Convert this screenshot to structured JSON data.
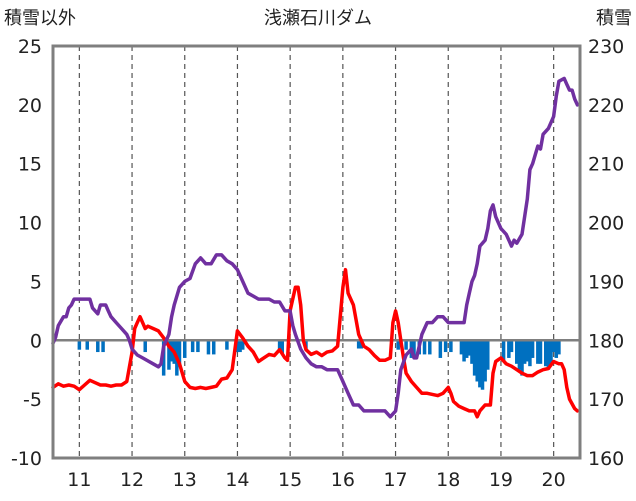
{
  "chart_data": {
    "type": "line",
    "title": "浅瀬石川ダム",
    "left_axis_label": "積雪以外",
    "right_axis_label": "積雪",
    "x_range": [
      10.5,
      20.5
    ],
    "x_ticks": [
      11,
      12,
      13,
      14,
      15,
      16,
      17,
      18,
      19,
      20
    ],
    "left_ylim": [
      -10,
      25
    ],
    "left_ticks": [
      25,
      20,
      15,
      10,
      5,
      0,
      -5,
      -10
    ],
    "right_ylim": [
      160,
      230
    ],
    "right_ticks": [
      230,
      220,
      210,
      200,
      190,
      180,
      170,
      160
    ],
    "grid": "dashed vertical at each day",
    "colors": {
      "series_red": "#ff0000",
      "series_purple": "#7030a0",
      "bars": "#0070c0",
      "zero_line": "#7f7f7f",
      "frame": "#7f7f7f"
    },
    "series": [
      {
        "axis": "left",
        "points": [
          [
            10.5,
            -4.0
          ],
          [
            10.6,
            -3.7
          ],
          [
            10.7,
            -3.9
          ],
          [
            10.8,
            -3.8
          ],
          [
            10.9,
            -3.9
          ],
          [
            11.0,
            -4.2
          ],
          [
            11.1,
            -3.8
          ],
          [
            11.2,
            -3.4
          ],
          [
            11.3,
            -3.6
          ],
          [
            11.4,
            -3.8
          ],
          [
            11.5,
            -3.8
          ],
          [
            11.6,
            -3.9
          ],
          [
            11.7,
            -3.8
          ],
          [
            11.8,
            -3.8
          ],
          [
            11.9,
            -3.5
          ],
          [
            12.0,
            -1.0
          ],
          [
            12.05,
            1.0
          ],
          [
            12.1,
            1.5
          ],
          [
            12.15,
            2.0
          ],
          [
            12.2,
            1.5
          ],
          [
            12.25,
            1.0
          ],
          [
            12.3,
            1.2
          ],
          [
            12.4,
            1.0
          ],
          [
            12.5,
            0.8
          ],
          [
            12.6,
            0.2
          ],
          [
            12.7,
            -0.5
          ],
          [
            12.8,
            -1.0
          ],
          [
            12.9,
            -2.0
          ],
          [
            13.0,
            -3.5
          ],
          [
            13.1,
            -4.0
          ],
          [
            13.2,
            -4.1
          ],
          [
            13.3,
            -4.0
          ],
          [
            13.4,
            -4.1
          ],
          [
            13.5,
            -4.0
          ],
          [
            13.6,
            -3.9
          ],
          [
            13.7,
            -3.3
          ],
          [
            13.8,
            -3.2
          ],
          [
            13.9,
            -2.5
          ],
          [
            14.0,
            0.8
          ],
          [
            14.1,
            0.2
          ],
          [
            14.2,
            -0.5
          ],
          [
            14.3,
            -1.0
          ],
          [
            14.4,
            -1.8
          ],
          [
            14.5,
            -1.5
          ],
          [
            14.6,
            -1.2
          ],
          [
            14.7,
            -1.3
          ],
          [
            14.8,
            -0.8
          ],
          [
            14.9,
            -1.5
          ],
          [
            14.95,
            -1.7
          ],
          [
            15.0,
            2.5
          ],
          [
            15.1,
            4.5
          ],
          [
            15.15,
            4.5
          ],
          [
            15.2,
            3.0
          ],
          [
            15.25,
            0.0
          ],
          [
            15.3,
            -0.8
          ],
          [
            15.4,
            -1.2
          ],
          [
            15.5,
            -1.0
          ],
          [
            15.6,
            -1.3
          ],
          [
            15.7,
            -1.0
          ],
          [
            15.8,
            -0.9
          ],
          [
            15.9,
            -0.5
          ],
          [
            16.0,
            4.5
          ],
          [
            16.05,
            6.0
          ],
          [
            16.1,
            4.0
          ],
          [
            16.2,
            3.0
          ],
          [
            16.3,
            0.5
          ],
          [
            16.4,
            -0.5
          ],
          [
            16.5,
            -0.8
          ],
          [
            16.6,
            -1.3
          ],
          [
            16.7,
            -1.7
          ],
          [
            16.8,
            -1.7
          ],
          [
            16.9,
            -1.5
          ],
          [
            16.95,
            1.5
          ],
          [
            17.0,
            2.5
          ],
          [
            17.05,
            1.5
          ],
          [
            17.1,
            0.0
          ],
          [
            17.15,
            -1.5
          ],
          [
            17.2,
            -2.8
          ],
          [
            17.3,
            -3.5
          ],
          [
            17.4,
            -4.0
          ],
          [
            17.5,
            -4.5
          ],
          [
            17.6,
            -4.5
          ],
          [
            17.7,
            -4.6
          ],
          [
            17.8,
            -4.7
          ],
          [
            17.9,
            -4.5
          ],
          [
            18.0,
            -4.0
          ],
          [
            18.05,
            -4.5
          ],
          [
            18.1,
            -5.2
          ],
          [
            18.2,
            -5.6
          ],
          [
            18.3,
            -5.8
          ],
          [
            18.4,
            -6.0
          ],
          [
            18.5,
            -6.0
          ],
          [
            18.55,
            -6.5
          ],
          [
            18.6,
            -6.0
          ],
          [
            18.7,
            -5.5
          ],
          [
            18.8,
            -5.5
          ],
          [
            18.85,
            -2.8
          ],
          [
            18.9,
            -1.8
          ],
          [
            19.0,
            -1.5
          ],
          [
            19.1,
            -2.0
          ],
          [
            19.2,
            -2.2
          ],
          [
            19.3,
            -2.5
          ],
          [
            19.4,
            -2.8
          ],
          [
            19.5,
            -3.0
          ],
          [
            19.6,
            -3.0
          ],
          [
            19.7,
            -2.7
          ],
          [
            19.8,
            -2.5
          ],
          [
            19.9,
            -2.4
          ],
          [
            20.0,
            -1.8
          ],
          [
            20.1,
            -2.0
          ],
          [
            20.15,
            -2.0
          ],
          [
            20.2,
            -2.5
          ],
          [
            20.25,
            -4.0
          ],
          [
            20.3,
            -5.0
          ],
          [
            20.4,
            -5.8
          ],
          [
            20.45,
            -6.0
          ]
        ]
      },
      {
        "axis": "right",
        "points": [
          [
            10.5,
            179.5
          ],
          [
            10.55,
            180.5
          ],
          [
            10.6,
            182.5
          ],
          [
            10.7,
            184.0
          ],
          [
            10.75,
            184.0
          ],
          [
            10.8,
            185.5
          ],
          [
            10.85,
            186.0
          ],
          [
            10.9,
            187.0
          ],
          [
            11.0,
            187.0
          ],
          [
            11.1,
            187.0
          ],
          [
            11.2,
            187.0
          ],
          [
            11.25,
            185.5
          ],
          [
            11.3,
            185.0
          ],
          [
            11.35,
            184.5
          ],
          [
            11.4,
            186.0
          ],
          [
            11.5,
            186.0
          ],
          [
            11.55,
            185.0
          ],
          [
            11.6,
            184.0
          ],
          [
            11.7,
            183.0
          ],
          [
            11.8,
            182.0
          ],
          [
            11.9,
            181.0
          ],
          [
            11.95,
            180.0
          ],
          [
            12.0,
            178.5
          ],
          [
            12.1,
            177.5
          ],
          [
            12.2,
            177.0
          ],
          [
            12.3,
            176.5
          ],
          [
            12.4,
            176.0
          ],
          [
            12.5,
            175.5
          ],
          [
            12.55,
            176.0
          ],
          [
            12.6,
            179.0
          ],
          [
            12.7,
            181.0
          ],
          [
            12.75,
            184.0
          ],
          [
            12.8,
            186.0
          ],
          [
            12.9,
            189.0
          ],
          [
            13.0,
            190.0
          ],
          [
            13.1,
            190.5
          ],
          [
            13.2,
            193.0
          ],
          [
            13.3,
            194.0
          ],
          [
            13.4,
            193.0
          ],
          [
            13.5,
            193.0
          ],
          [
            13.6,
            194.5
          ],
          [
            13.7,
            194.5
          ],
          [
            13.8,
            193.5
          ],
          [
            13.9,
            193.0
          ],
          [
            14.0,
            192.0
          ],
          [
            14.1,
            190.0
          ],
          [
            14.2,
            188.0
          ],
          [
            14.3,
            187.5
          ],
          [
            14.4,
            187.0
          ],
          [
            14.5,
            187.0
          ],
          [
            14.6,
            187.0
          ],
          [
            14.7,
            186.5
          ],
          [
            14.8,
            186.5
          ],
          [
            14.9,
            185.0
          ],
          [
            15.0,
            185.0
          ],
          [
            15.05,
            182.5
          ],
          [
            15.1,
            181.0
          ],
          [
            15.2,
            178.5
          ],
          [
            15.3,
            177.0
          ],
          [
            15.4,
            176.0
          ],
          [
            15.5,
            175.5
          ],
          [
            15.6,
            175.5
          ],
          [
            15.7,
            175.0
          ],
          [
            15.8,
            175.0
          ],
          [
            15.9,
            175.0
          ],
          [
            16.0,
            173.0
          ],
          [
            16.1,
            171.0
          ],
          [
            16.2,
            169.0
          ],
          [
            16.3,
            169.0
          ],
          [
            16.4,
            168.0
          ],
          [
            16.5,
            168.0
          ],
          [
            16.6,
            168.0
          ],
          [
            16.7,
            168.0
          ],
          [
            16.8,
            168.0
          ],
          [
            16.9,
            167.0
          ],
          [
            17.0,
            168.0
          ],
          [
            17.05,
            171.0
          ],
          [
            17.1,
            175.0
          ],
          [
            17.2,
            177.5
          ],
          [
            17.3,
            178.5
          ],
          [
            17.35,
            177.0
          ],
          [
            17.4,
            177.0
          ],
          [
            17.5,
            181.0
          ],
          [
            17.6,
            183.0
          ],
          [
            17.7,
            183.0
          ],
          [
            17.8,
            184.0
          ],
          [
            17.9,
            184.0
          ],
          [
            18.0,
            183.0
          ],
          [
            18.1,
            183.0
          ],
          [
            18.2,
            183.0
          ],
          [
            18.3,
            183.0
          ],
          [
            18.35,
            186.0
          ],
          [
            18.4,
            188.0
          ],
          [
            18.45,
            190.0
          ],
          [
            18.5,
            191.0
          ],
          [
            18.55,
            193.0
          ],
          [
            18.6,
            196.0
          ],
          [
            18.7,
            197.0
          ],
          [
            18.75,
            199.0
          ],
          [
            18.8,
            202.0
          ],
          [
            18.85,
            203.0
          ],
          [
            18.9,
            201.0
          ],
          [
            19.0,
            199.0
          ],
          [
            19.1,
            198.0
          ],
          [
            19.2,
            196.0
          ],
          [
            19.25,
            197.0
          ],
          [
            19.3,
            196.5
          ],
          [
            19.4,
            198.0
          ],
          [
            19.5,
            204.0
          ],
          [
            19.55,
            209.0
          ],
          [
            19.6,
            210.0
          ],
          [
            19.7,
            213.0
          ],
          [
            19.75,
            212.5
          ],
          [
            19.8,
            215.0
          ],
          [
            19.9,
            216.0
          ],
          [
            20.0,
            218.0
          ],
          [
            20.05,
            221.5
          ],
          [
            20.1,
            224.0
          ],
          [
            20.2,
            224.5
          ],
          [
            20.25,
            223.5
          ],
          [
            20.3,
            222.5
          ],
          [
            20.35,
            222.5
          ],
          [
            20.4,
            221.0
          ],
          [
            20.45,
            220.0
          ]
        ]
      }
    ],
    "bars": [
      [
        11.0,
        -0.8
      ],
      [
        11.15,
        -0.8
      ],
      [
        11.35,
        -1.0
      ],
      [
        11.45,
        -1.0
      ],
      [
        12.25,
        -1.0
      ],
      [
        12.6,
        -3.0
      ],
      [
        12.7,
        -2.5
      ],
      [
        12.75,
        -1.8
      ],
      [
        12.8,
        -2.0
      ],
      [
        12.85,
        -3.0
      ],
      [
        12.9,
        -2.2
      ],
      [
        13.0,
        -1.5
      ],
      [
        13.15,
        -1.0
      ],
      [
        13.25,
        -1.0
      ],
      [
        13.45,
        -1.2
      ],
      [
        13.55,
        -1.2
      ],
      [
        13.8,
        -0.8
      ],
      [
        14.0,
        -1.0
      ],
      [
        14.05,
        -1.0
      ],
      [
        14.1,
        -0.8
      ],
      [
        14.8,
        -1.0
      ],
      [
        14.85,
        -1.2
      ],
      [
        15.3,
        -0.8
      ],
      [
        16.3,
        -0.7
      ],
      [
        16.35,
        -0.7
      ],
      [
        17.05,
        -0.8
      ],
      [
        17.2,
        -0.8
      ],
      [
        17.3,
        -1.5
      ],
      [
        17.35,
        -1.5
      ],
      [
        17.45,
        -1.2
      ],
      [
        17.55,
        -1.2
      ],
      [
        17.65,
        -1.2
      ],
      [
        17.85,
        -1.5
      ],
      [
        17.95,
        -1.0
      ],
      [
        18.05,
        -1.0
      ],
      [
        18.25,
        -1.2
      ],
      [
        18.3,
        -1.8
      ],
      [
        18.35,
        -1.5
      ],
      [
        18.4,
        -1.3
      ],
      [
        18.45,
        -2.0
      ],
      [
        18.5,
        -3.0
      ],
      [
        18.55,
        -3.5
      ],
      [
        18.6,
        -4.0
      ],
      [
        18.65,
        -4.2
      ],
      [
        18.7,
        -3.5
      ],
      [
        18.75,
        -2.5
      ],
      [
        19.05,
        -1.8
      ],
      [
        19.15,
        -1.5
      ],
      [
        19.2,
        -1.0
      ],
      [
        19.3,
        -2.0
      ],
      [
        19.35,
        -2.5
      ],
      [
        19.4,
        -3.0
      ],
      [
        19.45,
        -2.0
      ],
      [
        19.5,
        -1.8
      ],
      [
        19.55,
        -2.2
      ],
      [
        19.6,
        -1.5
      ],
      [
        19.7,
        -2.0
      ],
      [
        19.75,
        -2.0
      ],
      [
        19.85,
        -2.2
      ],
      [
        19.9,
        -2.5
      ],
      [
        19.95,
        -2.0
      ],
      [
        20.0,
        -1.0
      ],
      [
        20.05,
        -1.5
      ],
      [
        20.1,
        -1.2
      ]
    ]
  }
}
